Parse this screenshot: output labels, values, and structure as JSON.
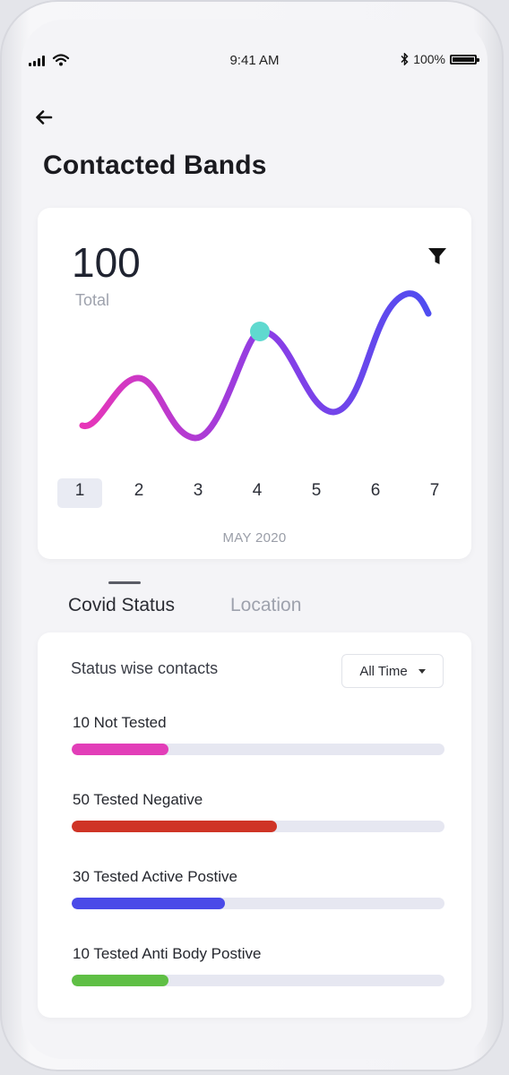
{
  "status_bar": {
    "time": "9:41 AM",
    "battery": "100%"
  },
  "header": {
    "title": "Contacted Bands"
  },
  "summary": {
    "total_value": "100",
    "total_label": "Total"
  },
  "chart_data": {
    "type": "line",
    "x": [
      1,
      2,
      3,
      4,
      5,
      6,
      7
    ],
    "x_tick_labels": [
      "1",
      "2",
      "3",
      "4",
      "5",
      "6",
      "7"
    ],
    "xlabel": "MAY 2020",
    "title": "",
    "selected_day": "1",
    "highlight_point_x": 4,
    "gradient_colors": [
      "#e836b8",
      "#8a3ee6",
      "#4f4df0"
    ],
    "highlight_color": "#5fd9cf"
  },
  "tabs": [
    {
      "label": "Covid Status",
      "active": true
    },
    {
      "label": "Location",
      "active": false
    }
  ],
  "status_card": {
    "heading": "Status wise contacts",
    "filter_value": "All Time",
    "rows": [
      {
        "label": "10 Not Tested",
        "value": 10,
        "fraction": 0.26,
        "color": "#e23eb8"
      },
      {
        "label": "50 Tested Negative",
        "value": 50,
        "fraction": 0.55,
        "color": "#cf3426"
      },
      {
        "label": "30 Tested Active Postive",
        "value": 30,
        "fraction": 0.41,
        "color": "#4a4ae8"
      },
      {
        "label": "10 Tested Anti Body Postive",
        "value": 10,
        "fraction": 0.26,
        "color": "#5fbf45"
      }
    ]
  }
}
